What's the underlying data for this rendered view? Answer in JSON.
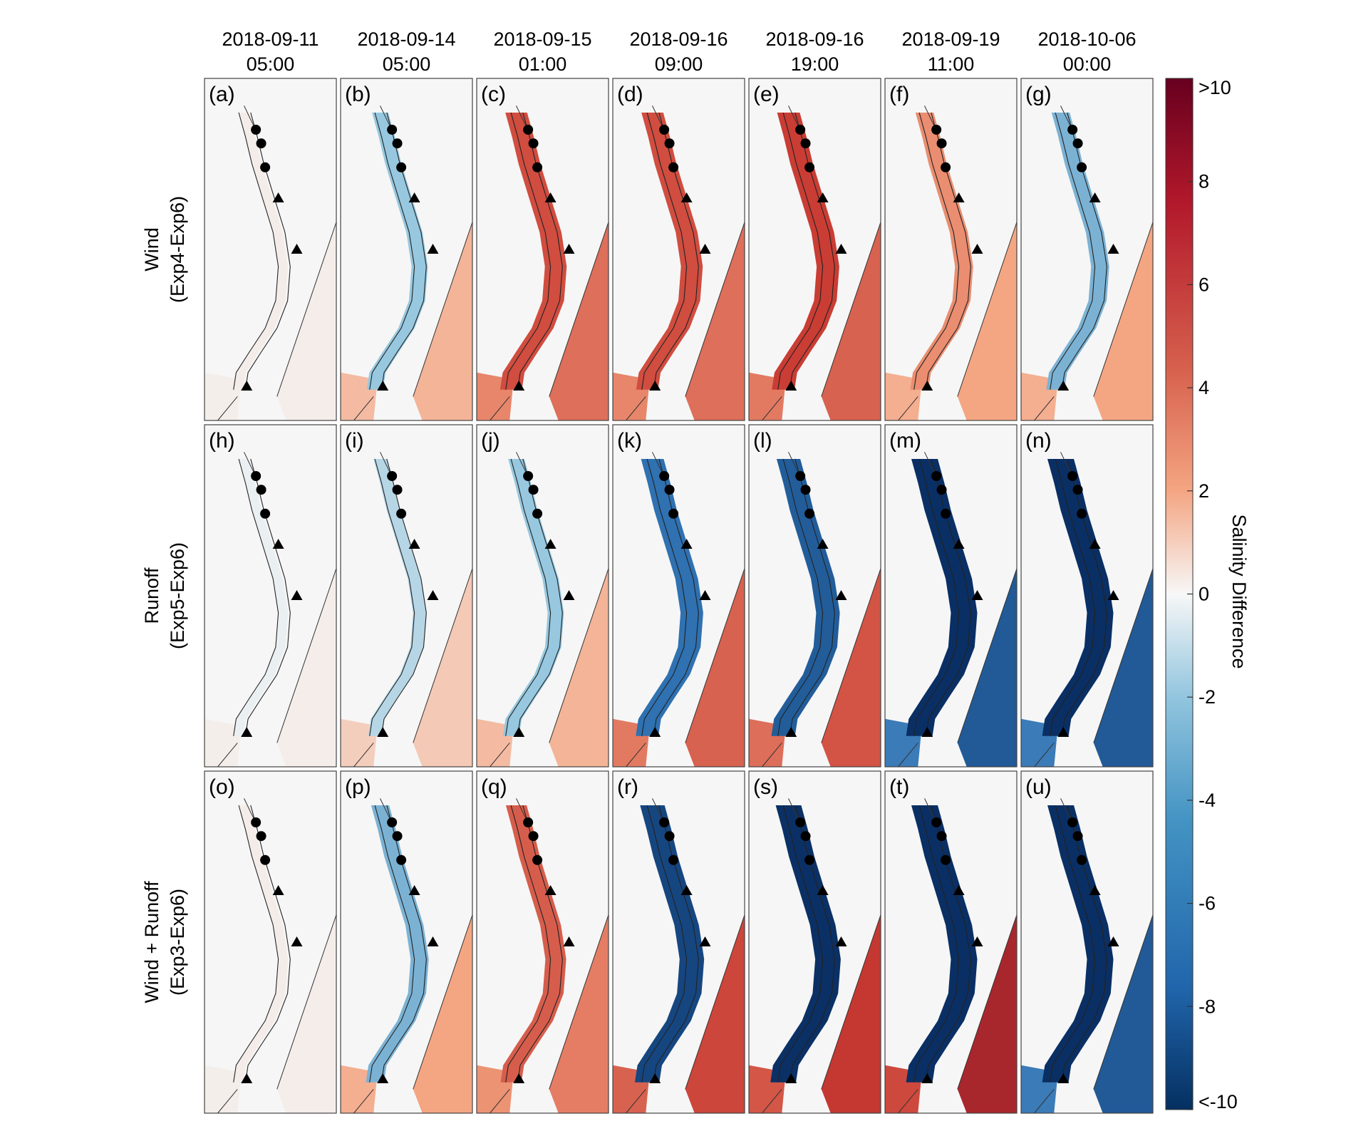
{
  "columns": [
    {
      "date": "2018-09-11",
      "time": "05:00"
    },
    {
      "date": "2018-09-14",
      "time": "05:00"
    },
    {
      "date": "2018-09-15",
      "time": "01:00"
    },
    {
      "date": "2018-09-16",
      "time": "09:00"
    },
    {
      "date": "2018-09-16",
      "time": "19:00"
    },
    {
      "date": "2018-09-19",
      "time": "11:00"
    },
    {
      "date": "2018-10-06",
      "time": "00:00"
    }
  ],
  "rows": [
    {
      "line1": "Wind",
      "line2": "(Exp4-Exp6)"
    },
    {
      "line1": "Runoff",
      "line2": "(Exp5-Exp6)"
    },
    {
      "line1": "Wind + Runoff",
      "line2": "(Exp3-Exp6)"
    }
  ],
  "panel_labels": [
    [
      "(a)",
      "(b)",
      "(c)",
      "(d)",
      "(e)",
      "(f)",
      "(g)"
    ],
    [
      "(h)",
      "(i)",
      "(j)",
      "(k)",
      "(l)",
      "(m)",
      "(n)"
    ],
    [
      "(o)",
      "(p)",
      "(q)",
      "(r)",
      "(s)",
      "(t)",
      "(u)"
    ]
  ],
  "panel_intensity": {
    "note_free": true,
    "values": [
      [
        0.05,
        0.45,
        0.75,
        0.75,
        0.8,
        0.55,
        0.55
      ],
      [
        0.05,
        0.3,
        0.45,
        0.8,
        0.85,
        1.0,
        1.0
      ],
      [
        0.05,
        0.55,
        0.7,
        0.9,
        0.95,
        1.0,
        1.0
      ]
    ],
    "ocean_sign": [
      [
        1,
        1,
        1,
        1,
        1,
        1,
        1
      ],
      [
        1,
        1,
        1,
        1,
        1,
        -1,
        -1
      ],
      [
        1,
        1,
        1,
        1,
        1,
        1,
        -1
      ]
    ],
    "estuary_sign": [
      [
        1,
        -1,
        1,
        1,
        1,
        1,
        -1
      ],
      [
        -1,
        -1,
        -1,
        -1,
        -1,
        -1,
        -1
      ],
      [
        1,
        -1,
        1,
        -1,
        -1,
        -1,
        -1
      ]
    ]
  },
  "colorbar": {
    "title": "Salinity Difference",
    "ticks": [
      ">10",
      "8",
      "6",
      "4",
      "2",
      "0",
      "-2",
      "-4",
      "-6",
      "-8",
      "<-10"
    ],
    "min": -10,
    "max": 10
  },
  "colors": {
    "deep_red": "#67001f",
    "red": "#c83a32",
    "light_red": "#f4a582",
    "neutral": "#f4f4f4",
    "light_blue": "#92c5de",
    "blue": "#2c6fb0",
    "deep_blue": "#0a2f64"
  }
}
